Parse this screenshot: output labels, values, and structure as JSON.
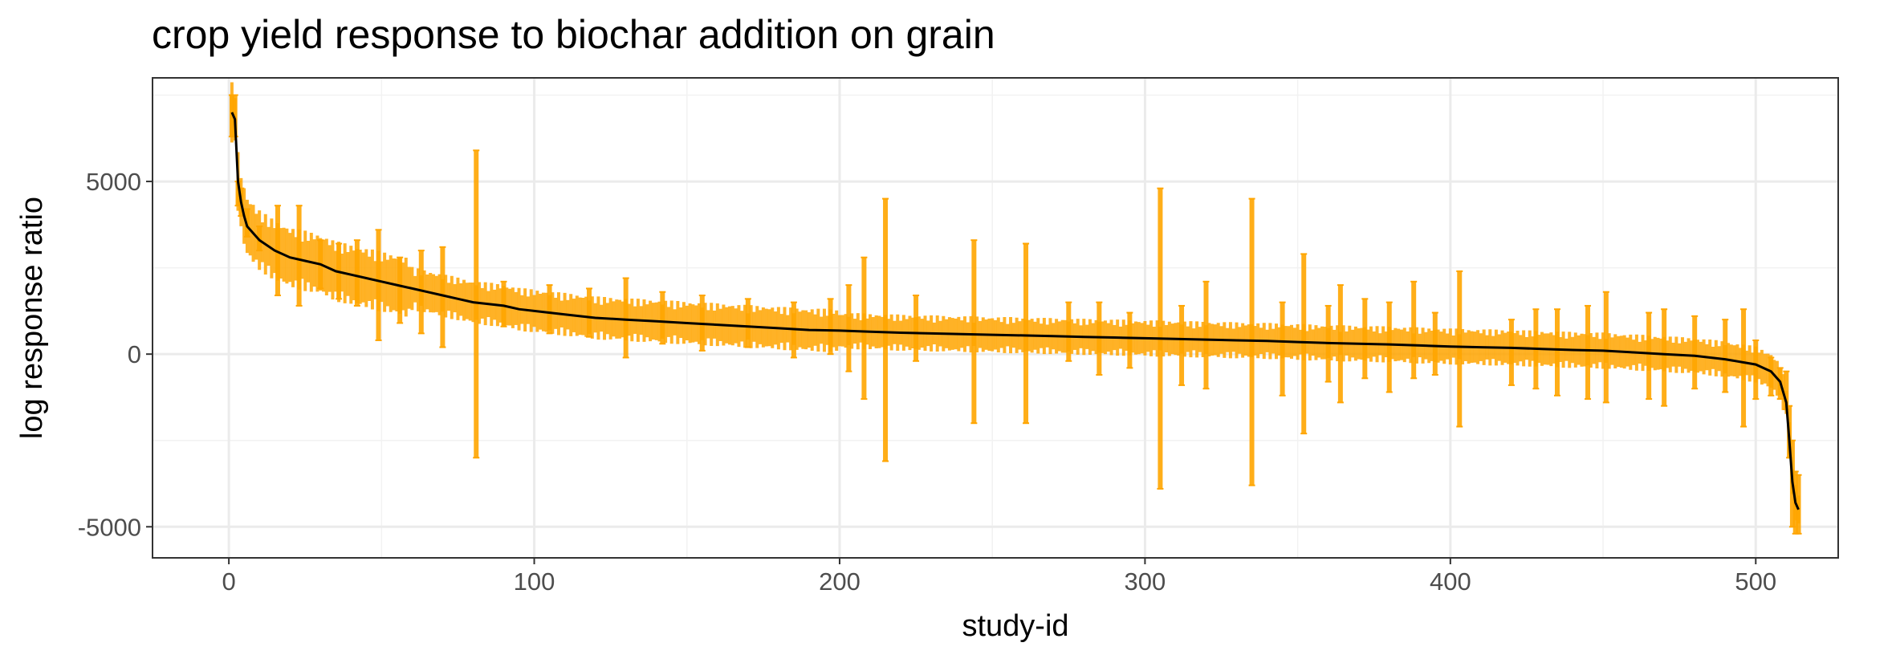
{
  "chart_data": {
    "type": "line",
    "title": "crop yield response to biochar addition on grain",
    "xlabel": "study-id",
    "ylabel": "log response ratio",
    "xlim": [
      -25,
      527
    ],
    "ylim": [
      -5900,
      8000
    ],
    "x_ticks": [
      0,
      100,
      200,
      300,
      400,
      500
    ],
    "x_tick_labels": [
      "0",
      "100",
      "200",
      "300",
      "400",
      "500"
    ],
    "y_ticks": [
      -5000,
      0,
      5000
    ],
    "y_tick_labels": [
      "-5000",
      "0",
      "5000"
    ],
    "grid": true,
    "legend": "none",
    "series": [
      {
        "line_color": "#000000",
        "errorbar_color": "#FFA500",
        "x": [
          1,
          2,
          3,
          4,
          5,
          6,
          10,
          15,
          20,
          25,
          30,
          35,
          40,
          45,
          50,
          55,
          60,
          65,
          70,
          75,
          80,
          85,
          90,
          95,
          100,
          110,
          120,
          130,
          140,
          150,
          160,
          170,
          180,
          190,
          200,
          210,
          220,
          230,
          240,
          250,
          260,
          270,
          280,
          290,
          300,
          310,
          320,
          330,
          340,
          350,
          360,
          370,
          380,
          390,
          400,
          410,
          420,
          430,
          440,
          450,
          460,
          470,
          480,
          490,
          500,
          505,
          508,
          510,
          511,
          512,
          513,
          514
        ],
        "y": [
          7000,
          6800,
          5000,
          4400,
          4000,
          3700,
          3300,
          3000,
          2800,
          2700,
          2600,
          2400,
          2300,
          2200,
          2100,
          2000,
          1900,
          1800,
          1700,
          1600,
          1500,
          1450,
          1400,
          1300,
          1250,
          1150,
          1050,
          1000,
          950,
          900,
          850,
          800,
          750,
          700,
          680,
          650,
          620,
          600,
          580,
          560,
          540,
          520,
          500,
          480,
          460,
          440,
          420,
          400,
          380,
          350,
          320,
          300,
          280,
          250,
          220,
          200,
          180,
          150,
          120,
          100,
          50,
          0,
          -50,
          -150,
          -300,
          -500,
          -800,
          -1400,
          -2500,
          -3700,
          -4300,
          -4500
        ],
        "errorbars": [
          {
            "x": 1,
            "low": 6300,
            "high": 7500
          },
          {
            "x": 2,
            "low": 6300,
            "high": 7500
          },
          {
            "x": 3,
            "low": 4300,
            "high": 5000
          },
          {
            "x": 4,
            "low": 4000,
            "high": 4800
          },
          {
            "x": 6,
            "low": 3400,
            "high": 4200
          },
          {
            "x": 10,
            "low": 3000,
            "high": 3700
          },
          {
            "x": 16,
            "low": 1700,
            "high": 4300
          },
          {
            "x": 23,
            "low": 1400,
            "high": 4300
          },
          {
            "x": 30,
            "low": 1900,
            "high": 3300
          },
          {
            "x": 36,
            "low": 1600,
            "high": 3200
          },
          {
            "x": 42,
            "low": 1400,
            "high": 3300
          },
          {
            "x": 49,
            "low": 400,
            "high": 3600
          },
          {
            "x": 56,
            "low": 900,
            "high": 2800
          },
          {
            "x": 63,
            "low": 600,
            "high": 3000
          },
          {
            "x": 70,
            "low": 200,
            "high": 3100
          },
          {
            "x": 81,
            "low": -3000,
            "high": 5900
          },
          {
            "x": 90,
            "low": 800,
            "high": 2100
          },
          {
            "x": 105,
            "low": 600,
            "high": 2000
          },
          {
            "x": 118,
            "low": 500,
            "high": 1900
          },
          {
            "x": 130,
            "low": -100,
            "high": 2200
          },
          {
            "x": 142,
            "low": 300,
            "high": 1800
          },
          {
            "x": 155,
            "low": 100,
            "high": 1700
          },
          {
            "x": 170,
            "low": 200,
            "high": 1600
          },
          {
            "x": 185,
            "low": -100,
            "high": 1500
          },
          {
            "x": 197,
            "low": 0,
            "high": 1600
          },
          {
            "x": 203,
            "low": -500,
            "high": 2000
          },
          {
            "x": 208,
            "low": -1300,
            "high": 2800
          },
          {
            "x": 215,
            "low": -3100,
            "high": 4500
          },
          {
            "x": 225,
            "low": -200,
            "high": 1700
          },
          {
            "x": 244,
            "low": -2000,
            "high": 3300
          },
          {
            "x": 261,
            "low": -2000,
            "high": 3200
          },
          {
            "x": 275,
            "low": -200,
            "high": 1500
          },
          {
            "x": 285,
            "low": -600,
            "high": 1500
          },
          {
            "x": 295,
            "low": -400,
            "high": 1200
          },
          {
            "x": 305,
            "low": -3900,
            "high": 4800
          },
          {
            "x": 312,
            "low": -900,
            "high": 1400
          },
          {
            "x": 320,
            "low": -1000,
            "high": 2100
          },
          {
            "x": 335,
            "low": -3800,
            "high": 4500
          },
          {
            "x": 345,
            "low": -1200,
            "high": 1500
          },
          {
            "x": 352,
            "low": -2300,
            "high": 2900
          },
          {
            "x": 360,
            "low": -800,
            "high": 1400
          },
          {
            "x": 364,
            "low": -1400,
            "high": 2000
          },
          {
            "x": 372,
            "low": -700,
            "high": 1600
          },
          {
            "x": 380,
            "low": -1100,
            "high": 1500
          },
          {
            "x": 388,
            "low": -700,
            "high": 2100
          },
          {
            "x": 395,
            "low": -600,
            "high": 1200
          },
          {
            "x": 403,
            "low": -2100,
            "high": 2400
          },
          {
            "x": 420,
            "low": -900,
            "high": 1000
          },
          {
            "x": 428,
            "low": -1000,
            "high": 1300
          },
          {
            "x": 435,
            "low": -1200,
            "high": 1300
          },
          {
            "x": 445,
            "low": -1300,
            "high": 1400
          },
          {
            "x": 451,
            "low": -1400,
            "high": 1800
          },
          {
            "x": 465,
            "low": -1300,
            "high": 1200
          },
          {
            "x": 470,
            "low": -1500,
            "high": 1300
          },
          {
            "x": 480,
            "low": -1000,
            "high": 1100
          },
          {
            "x": 490,
            "low": -1100,
            "high": 1000
          },
          {
            "x": 496,
            "low": -2100,
            "high": 1300
          },
          {
            "x": 500,
            "low": -1300,
            "high": 400
          },
          {
            "x": 505,
            "low": -1200,
            "high": -100
          },
          {
            "x": 508,
            "low": -1300,
            "high": -400
          },
          {
            "x": 510,
            "low": -1600,
            "high": -500
          },
          {
            "x": 511,
            "low": -3000,
            "high": -1500
          },
          {
            "x": 512,
            "low": -5000,
            "high": -2500
          },
          {
            "x": 513,
            "low": -5200,
            "high": -3400
          },
          {
            "x": 514,
            "low": -5200,
            "high": -3500
          }
        ]
      }
    ]
  }
}
